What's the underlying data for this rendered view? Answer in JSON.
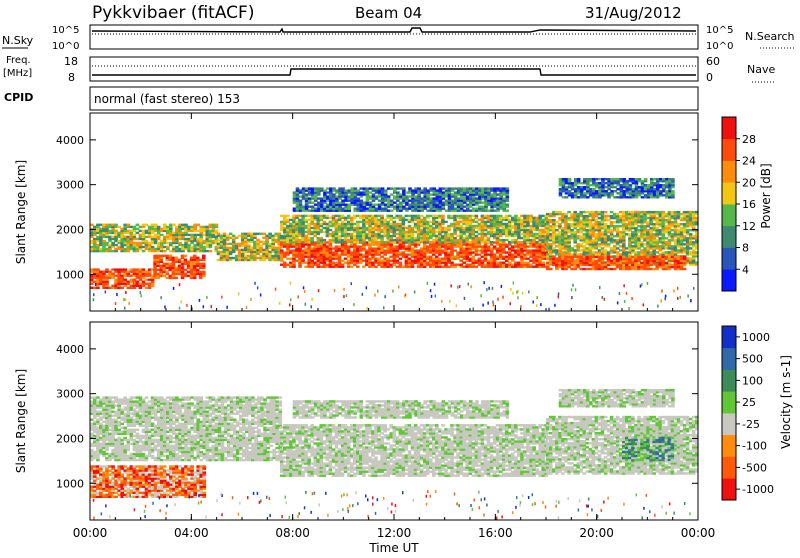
{
  "header": {
    "station": "Pykkvibaer (fitACF)",
    "beam": "Beam 04",
    "date": "31/Aug/2012"
  },
  "status_panels": {
    "nsky_label": "N.Sky",
    "nsky_ticks": [
      "10^5",
      "10^0"
    ],
    "nsearch_label": "N.Search",
    "nsearch_ticks": [
      "10^5",
      "10^0"
    ],
    "freq_label": "Freq.",
    "freq_unit": "[MHz]",
    "freq_ticks": [
      "18",
      "8"
    ],
    "nave_label": "Nave",
    "nave_ticks": [
      "60",
      "0"
    ],
    "cpid_label": "CPID",
    "cpid_text": "normal (fast stereo) 153"
  },
  "chart_data": [
    {
      "type": "heatmap",
      "name": "power",
      "xlabel": "Time UT",
      "ylabel": "Slant Range [km]",
      "x_ticks": [
        "00:00",
        "04:00",
        "08:00",
        "12:00",
        "16:00",
        "20:00",
        "00:00"
      ],
      "x_range_hours": [
        0,
        24
      ],
      "y_ticks": [
        1000,
        2000,
        3000,
        4000
      ],
      "y_range_km": [
        180,
        4600
      ],
      "colorbar": {
        "label": "Power [dB]",
        "ticks": [
          "4",
          "8",
          "12",
          "16",
          "20",
          "24",
          "28"
        ],
        "colors": [
          "#0a1aff",
          "#2a55b8",
          "#3d8a70",
          "#56b84a",
          "#f0c814",
          "#ff8c0a",
          "#ff4a0a",
          "#f01010"
        ]
      },
      "bands": [
        {
          "t0": 0.0,
          "t1": 2.5,
          "r0": 680,
          "r1": 1100,
          "level": "high"
        },
        {
          "t0": 2.5,
          "t1": 4.5,
          "r0": 900,
          "r1": 1400,
          "level": "high"
        },
        {
          "t0": 0.0,
          "t1": 5.0,
          "r0": 1500,
          "r1": 2100,
          "level": "mid"
        },
        {
          "t0": 5.0,
          "t1": 7.5,
          "r0": 1300,
          "r1": 1900,
          "level": "mid"
        },
        {
          "t0": 7.5,
          "t1": 18.0,
          "r0": 1150,
          "r1": 1700,
          "level": "high"
        },
        {
          "t0": 7.5,
          "t1": 18.0,
          "r0": 1700,
          "r1": 2300,
          "level": "mid"
        },
        {
          "t0": 8.0,
          "t1": 16.5,
          "r0": 2400,
          "r1": 2900,
          "level": "low"
        },
        {
          "t0": 18.0,
          "t1": 24.0,
          "r0": 1200,
          "r1": 2400,
          "level": "mid"
        },
        {
          "t0": 18.0,
          "t1": 23.5,
          "r0": 1100,
          "r1": 1400,
          "level": "high"
        },
        {
          "t0": 18.5,
          "t1": 23.0,
          "r0": 2700,
          "r1": 3150,
          "level": "low"
        }
      ]
    },
    {
      "type": "heatmap",
      "name": "velocity",
      "xlabel": "Time UT",
      "ylabel": "Slant Range [km]",
      "x_ticks": [
        "00:00",
        "04:00",
        "08:00",
        "12:00",
        "16:00",
        "20:00",
        "00:00"
      ],
      "x_range_hours": [
        0,
        24
      ],
      "y_ticks": [
        1000,
        2000,
        3000,
        4000
      ],
      "y_range_km": [
        180,
        4600
      ],
      "colorbar": {
        "label": "Velocity [m s-1]",
        "ticks": [
          "1000",
          "500",
          "100",
          "25",
          "-25",
          "-100",
          "-500",
          "-1000"
        ],
        "colors": [
          "#1030c8",
          "#2e6aa8",
          "#3c8c5a",
          "#60c838",
          "#c8c8c0",
          "#ff8c0a",
          "#ff5a0a",
          "#f01010"
        ]
      },
      "bands": [
        {
          "t0": 0.0,
          "t1": 4.5,
          "r0": 680,
          "r1": 1400,
          "level": "neg"
        },
        {
          "t0": 0.0,
          "t1": 7.5,
          "r0": 1500,
          "r1": 2900,
          "level": "gray"
        },
        {
          "t0": 7.5,
          "t1": 18.0,
          "r0": 1150,
          "r1": 2300,
          "level": "gray"
        },
        {
          "t0": 8.0,
          "t1": 16.5,
          "r0": 2450,
          "r1": 2850,
          "level": "gray"
        },
        {
          "t0": 18.0,
          "t1": 24.0,
          "r0": 1200,
          "r1": 2500,
          "level": "gray"
        },
        {
          "t0": 21.0,
          "t1": 23.0,
          "r0": 1500,
          "r1": 2000,
          "level": "pos"
        },
        {
          "t0": 18.5,
          "t1": 23.0,
          "r0": 2700,
          "r1": 3100,
          "level": "gray"
        }
      ]
    }
  ]
}
